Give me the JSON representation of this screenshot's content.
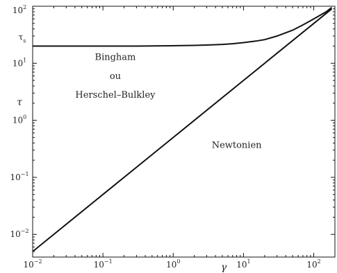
{
  "chart_data": {
    "type": "line",
    "scale": {
      "x": "log",
      "y": "log"
    },
    "xlim": [
      0.01,
      200
    ],
    "ylim": [
      0.004,
      100
    ],
    "xlabel": "γ",
    "ylabel": "τ",
    "grid": false,
    "legend": "none",
    "x_ticks": [
      {
        "value": 0.01,
        "base": "10",
        "exp": "−2"
      },
      {
        "value": 0.1,
        "base": "10",
        "exp": "−1"
      },
      {
        "value": 1,
        "base": "10",
        "exp": "0"
      },
      {
        "value": 10,
        "base": "10",
        "exp": "1"
      },
      {
        "value": 100,
        "base": "10",
        "exp": "2"
      }
    ],
    "y_ticks": [
      {
        "value": 0.01,
        "base": "10",
        "exp": "−2"
      },
      {
        "value": 0.1,
        "base": "10",
        "exp": "−1"
      },
      {
        "value": 1,
        "base": "10",
        "exp": "0"
      },
      {
        "value": 10,
        "base": "10",
        "exp": "1"
      },
      {
        "value": 100,
        "base": "10",
        "exp": "2"
      }
    ],
    "y_marker": {
      "value": 20,
      "base": "τ",
      "sub": "s"
    },
    "series": [
      {
        "x": [
          0.01,
          0.03,
          0.1,
          0.3,
          1,
          2,
          3,
          5,
          7,
          10,
          15,
          20,
          30,
          50,
          70,
          100,
          150,
          180
        ],
        "y": [
          20,
          20,
          20,
          20,
          20.3,
          20.6,
          20.9,
          21.4,
          22,
          23,
          24.5,
          26,
          30,
          38,
          47,
          60,
          80,
          95
        ]
      },
      {
        "x": [
          0.01,
          0.1,
          1,
          10,
          100,
          180
        ],
        "y": [
          0.005,
          0.05,
          0.5,
          5,
          50,
          90
        ]
      }
    ],
    "annotations": [
      {
        "text": "Bingham",
        "x": 0.15,
        "y": 11.5
      },
      {
        "text": "ou",
        "x": 0.15,
        "y": 5.3
      },
      {
        "text": "Herschel–Bulkley",
        "x": 0.15,
        "y": 2.5
      },
      {
        "text": "Newtonien",
        "x": 8,
        "y": 0.33
      }
    ]
  }
}
